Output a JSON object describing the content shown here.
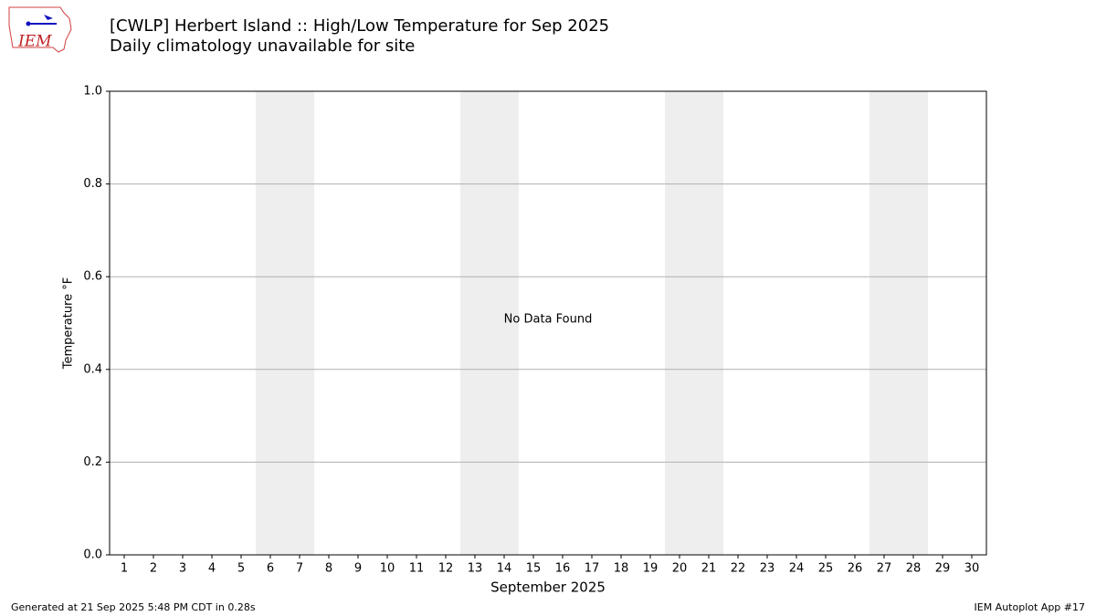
{
  "logo_text": "IEM",
  "chart_data": {
    "type": "line",
    "title": "[CWLP] Herbert Island :: High/Low Temperature for Sep 2025",
    "subtitle": "Daily climatology unavailable for site",
    "ylabel": "Temperature °F",
    "xlabel": "September 2025",
    "annotation": "No Data Found",
    "xlim": [
      0.5,
      30.5
    ],
    "xticks": [
      1,
      2,
      3,
      4,
      5,
      6,
      7,
      8,
      9,
      10,
      11,
      12,
      13,
      14,
      15,
      16,
      17,
      18,
      19,
      20,
      21,
      22,
      23,
      24,
      25,
      26,
      27,
      28,
      29,
      30
    ],
    "ylim": [
      0,
      1
    ],
    "yticks": [
      {
        "value": 0,
        "label": "0.0"
      },
      0.2,
      0.4,
      0.6,
      0.8,
      {
        "value": 1,
        "label": "1.0"
      }
    ],
    "grid": true,
    "grid_color": "#b0b0b0",
    "shaded_spans": [
      [
        5.5,
        7.5
      ],
      [
        12.5,
        14.5
      ],
      [
        19.5,
        21.5
      ],
      [
        26.5,
        28.5
      ]
    ],
    "shade_color": "#eeeeee"
  },
  "footer": {
    "left": "Generated at 21 Sep 2025 5:48 PM CDT in 0.28s",
    "right": "IEM Autoplot App #17"
  }
}
